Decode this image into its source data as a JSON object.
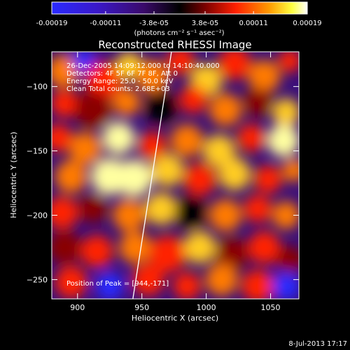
{
  "colorbar": {
    "ticks": [
      "-0.00019",
      "-0.00011",
      "-3.8e-05",
      "3.8e-05",
      "0.00011",
      "0.00019"
    ],
    "tick_values": [
      -0.00019,
      -0.00011,
      -3.8e-05,
      3.8e-05,
      0.00011,
      0.00019
    ],
    "range": [
      -0.00019,
      0.00019
    ],
    "unit_label": "(photons cm⁻² s⁻¹ asec⁻²)"
  },
  "chart_data": {
    "type": "heatmap",
    "title": "Reconstructed RHESSI Image",
    "xlabel": "Heliocentric X (arcsec)",
    "ylabel": "Heliocentric Y (arcsec)",
    "xlim": [
      880,
      1072
    ],
    "ylim": [
      -265,
      -73
    ],
    "x_ticks": [
      900,
      950,
      1000,
      1050
    ],
    "x_tick_labels": [
      "900",
      "950",
      "1000",
      "1050"
    ],
    "y_ticks": [
      -100,
      -150,
      -200,
      -250
    ],
    "y_tick_labels": [
      "−100",
      "−150",
      "−200",
      "−250"
    ],
    "annotations": [
      "26-Dec-2005 14:09:12.000 to 14:10:40.000",
      "Detectors: 4F 5F 6F 7F 8F, Att 0",
      "Energy Range: 25.0 - 50.0 keV",
      "Clean     Total counts: 2.68E+03",
      "Position of Peak = [944,-171]"
    ],
    "peak": [
      944,
      -171
    ],
    "colormap": "red-temperature (blue-violet negative, red-yellow-white positive)",
    "limb_line": [
      [
        943,
        -265
      ],
      [
        973,
        -73
      ]
    ]
  },
  "footer": {
    "timestamp": "8-Jul-2013 17:17"
  },
  "colors": {
    "background": "#000000",
    "text": "#ffffff",
    "negative": "#2a2aff",
    "neutral": "#000000",
    "positive_mid": "#ff2000",
    "positive_high": "#ffffff"
  }
}
